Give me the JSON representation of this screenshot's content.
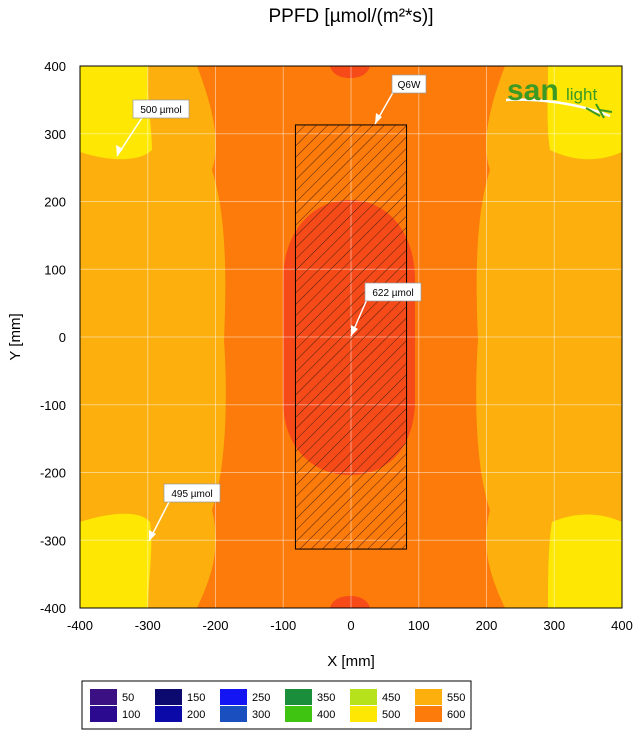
{
  "chart_data": {
    "type": "heatmap",
    "title": "PPFD [µmol/(m²*s)]",
    "xlabel": "X [mm]",
    "ylabel": "Y [mm]",
    "xlim": [
      -400,
      400
    ],
    "ylim": [
      -400,
      400
    ],
    "x_ticks": [
      "-400",
      "-300",
      "-200",
      "-100",
      "0",
      "100",
      "200",
      "300",
      "400"
    ],
    "y_ticks": [
      "400",
      "300",
      "200",
      "100",
      "0",
      "-100",
      "-200",
      "-300",
      "-400"
    ],
    "grid": true,
    "lamp": {
      "label": "Q6W",
      "x": [
        -82,
        82
      ],
      "y": [
        -313,
        313
      ],
      "hatched": true
    },
    "annotations": [
      {
        "text": "500 µmol",
        "x": -340,
        "y": 265
      },
      {
        "text": "622 µmol",
        "x": 0,
        "y": 0
      },
      {
        "text": "495 µmol",
        "x": -295,
        "y": -305
      }
    ],
    "legend": [
      {
        "label": "50",
        "color": "#3a1083"
      },
      {
        "label": "100",
        "color": "#2c0a8f"
      },
      {
        "label": "150",
        "color": "#0c0a6f"
      },
      {
        "label": "200",
        "color": "#0b0aa8"
      },
      {
        "label": "250",
        "color": "#1316f2"
      },
      {
        "label": "300",
        "color": "#1a4fbf"
      },
      {
        "label": "350",
        "color": "#1a8e3a"
      },
      {
        "label": "400",
        "color": "#3fc412"
      },
      {
        "label": "450",
        "color": "#b6e21c"
      },
      {
        "label": "500",
        "color": "#fde703"
      },
      {
        "label": "550",
        "color": "#fcaf0d"
      },
      {
        "label": "600",
        "color": "#fd7b0a"
      }
    ],
    "colors": {
      "band_500": "#fde703",
      "band_550": "#fcaf0d",
      "band_600": "#fd7b0a",
      "band_max": "#f64a18"
    }
  },
  "logo": {
    "brand": "san",
    "suffix": "light"
  }
}
